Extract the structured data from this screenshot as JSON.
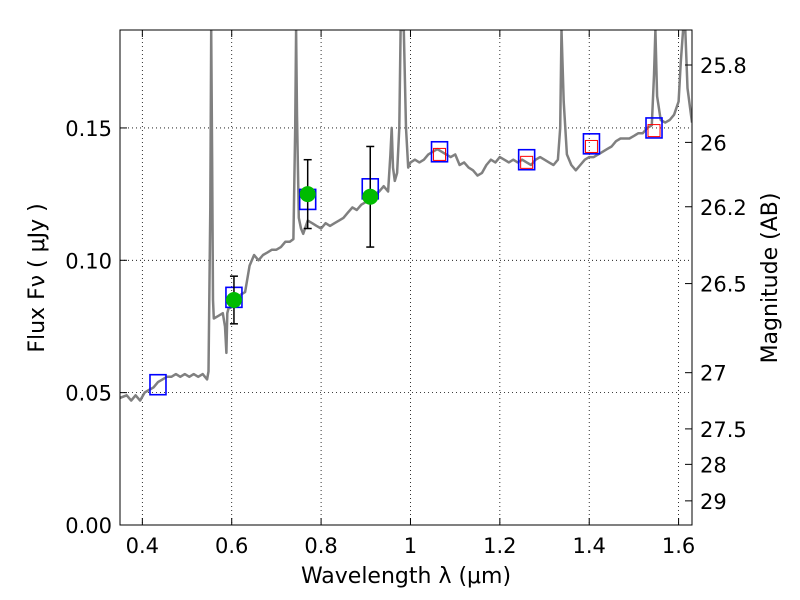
{
  "chart_data": {
    "type": "line",
    "xlabel": "Wavelength  λ (μm)",
    "ylabel": "Flux  Fν  ( μJy )",
    "y2label": "Magnitude (AB)",
    "xlim": [
      0.35,
      1.63
    ],
    "ylim": [
      0.0,
      0.187
    ],
    "grid": true,
    "x_ticks": [
      0.4,
      0.6,
      0.8,
      1.0,
      1.2,
      1.4,
      1.6
    ],
    "x_tick_labels": [
      "0.4",
      "0.6",
      "0.8",
      "1",
      "1.2",
      "1.4",
      "1.6"
    ],
    "y_ticks": [
      0.0,
      0.05,
      0.1,
      0.15
    ],
    "y_tick_labels": [
      "0.00",
      "0.05",
      "0.10",
      "0.15"
    ],
    "mag_ticks": [
      25.8,
      26,
      26.2,
      26.5,
      27,
      27.5,
      28,
      29
    ],
    "mag_tick_labels": [
      "25.8",
      "26",
      "26.2",
      "26.5",
      "27",
      "27.5",
      "28",
      "29"
    ],
    "colors": {
      "template": "#808080",
      "observed": "#00bb00",
      "errorbar": "#000000",
      "model_box": "#0000ff",
      "ir_box": "#ff0000"
    },
    "series": [
      {
        "kind": "template-spectrum",
        "points": [
          [
            0.35,
            0.048
          ],
          [
            0.365,
            0.049
          ],
          [
            0.375,
            0.047
          ],
          [
            0.385,
            0.049
          ],
          [
            0.395,
            0.047
          ],
          [
            0.405,
            0.05
          ],
          [
            0.415,
            0.051
          ],
          [
            0.425,
            0.052
          ],
          [
            0.435,
            0.054
          ],
          [
            0.445,
            0.055
          ],
          [
            0.455,
            0.056
          ],
          [
            0.465,
            0.056
          ],
          [
            0.475,
            0.057
          ],
          [
            0.485,
            0.056
          ],
          [
            0.495,
            0.057
          ],
          [
            0.505,
            0.056
          ],
          [
            0.515,
            0.057
          ],
          [
            0.525,
            0.056
          ],
          [
            0.535,
            0.057
          ],
          [
            0.545,
            0.055
          ],
          [
            0.548,
            0.058
          ],
          [
            0.552,
            0.12
          ],
          [
            0.554,
            0.187
          ],
          [
            0.556,
            0.14
          ],
          [
            0.558,
            0.085
          ],
          [
            0.56,
            0.078
          ],
          [
            0.57,
            0.079
          ],
          [
            0.58,
            0.08
          ],
          [
            0.585,
            0.075
          ],
          [
            0.588,
            0.065
          ],
          [
            0.59,
            0.08
          ],
          [
            0.593,
            0.082
          ],
          [
            0.597,
            0.082
          ],
          [
            0.6,
            0.083
          ],
          [
            0.61,
            0.084
          ],
          [
            0.62,
            0.087
          ],
          [
            0.63,
            0.088
          ],
          [
            0.64,
            0.098
          ],
          [
            0.65,
            0.102
          ],
          [
            0.66,
            0.1
          ],
          [
            0.67,
            0.102
          ],
          [
            0.68,
            0.103
          ],
          [
            0.69,
            0.104
          ],
          [
            0.7,
            0.104
          ],
          [
            0.71,
            0.105
          ],
          [
            0.72,
            0.107
          ],
          [
            0.73,
            0.107
          ],
          [
            0.738,
            0.108
          ],
          [
            0.742,
            0.15
          ],
          [
            0.744,
            0.187
          ],
          [
            0.746,
            0.155
          ],
          [
            0.75,
            0.116
          ],
          [
            0.755,
            0.112
          ],
          [
            0.76,
            0.11
          ],
          [
            0.77,
            0.115
          ],
          [
            0.78,
            0.114
          ],
          [
            0.79,
            0.113
          ],
          [
            0.8,
            0.112
          ],
          [
            0.81,
            0.114
          ],
          [
            0.82,
            0.113
          ],
          [
            0.83,
            0.114
          ],
          [
            0.84,
            0.115
          ],
          [
            0.85,
            0.116
          ],
          [
            0.86,
            0.118
          ],
          [
            0.87,
            0.12
          ],
          [
            0.88,
            0.119
          ],
          [
            0.89,
            0.121
          ],
          [
            0.9,
            0.122
          ],
          [
            0.91,
            0.124
          ],
          [
            0.92,
            0.125
          ],
          [
            0.93,
            0.126
          ],
          [
            0.94,
            0.128
          ],
          [
            0.95,
            0.126
          ],
          [
            0.955,
            0.14
          ],
          [
            0.958,
            0.15
          ],
          [
            0.961,
            0.135
          ],
          [
            0.965,
            0.13
          ],
          [
            0.97,
            0.133
          ],
          [
            0.975,
            0.15
          ],
          [
            0.978,
            0.187
          ],
          [
            0.985,
            0.187
          ],
          [
            0.99,
            0.15
          ],
          [
            0.995,
            0.135
          ],
          [
            1.0,
            0.137
          ],
          [
            1.01,
            0.138
          ],
          [
            1.02,
            0.137
          ],
          [
            1.03,
            0.138
          ],
          [
            1.04,
            0.14
          ],
          [
            1.05,
            0.141
          ],
          [
            1.06,
            0.142
          ],
          [
            1.07,
            0.141
          ],
          [
            1.08,
            0.14
          ],
          [
            1.09,
            0.139
          ],
          [
            1.1,
            0.14
          ],
          [
            1.11,
            0.136
          ],
          [
            1.12,
            0.137
          ],
          [
            1.13,
            0.135
          ],
          [
            1.14,
            0.134
          ],
          [
            1.15,
            0.132
          ],
          [
            1.16,
            0.133
          ],
          [
            1.17,
            0.136
          ],
          [
            1.18,
            0.138
          ],
          [
            1.19,
            0.137
          ],
          [
            1.2,
            0.139
          ],
          [
            1.21,
            0.138
          ],
          [
            1.22,
            0.137
          ],
          [
            1.23,
            0.138
          ],
          [
            1.24,
            0.137
          ],
          [
            1.25,
            0.138
          ],
          [
            1.26,
            0.137
          ],
          [
            1.27,
            0.136
          ],
          [
            1.28,
            0.138
          ],
          [
            1.29,
            0.139
          ],
          [
            1.3,
            0.138
          ],
          [
            1.31,
            0.137
          ],
          [
            1.32,
            0.136
          ],
          [
            1.33,
            0.138
          ],
          [
            1.335,
            0.15
          ],
          [
            1.338,
            0.187
          ],
          [
            1.343,
            0.16
          ],
          [
            1.35,
            0.14
          ],
          [
            1.36,
            0.136
          ],
          [
            1.37,
            0.134
          ],
          [
            1.38,
            0.136
          ],
          [
            1.39,
            0.138
          ],
          [
            1.4,
            0.139
          ],
          [
            1.41,
            0.139
          ],
          [
            1.42,
            0.14
          ],
          [
            1.43,
            0.141
          ],
          [
            1.44,
            0.142
          ],
          [
            1.45,
            0.143
          ],
          [
            1.46,
            0.145
          ],
          [
            1.47,
            0.146
          ],
          [
            1.48,
            0.146
          ],
          [
            1.49,
            0.146
          ],
          [
            1.5,
            0.147
          ],
          [
            1.51,
            0.148
          ],
          [
            1.52,
            0.148
          ],
          [
            1.53,
            0.15
          ],
          [
            1.54,
            0.151
          ],
          [
            1.545,
            0.17
          ],
          [
            1.548,
            0.187
          ],
          [
            1.552,
            0.162
          ],
          [
            1.56,
            0.153
          ],
          [
            1.57,
            0.152
          ],
          [
            1.58,
            0.153
          ],
          [
            1.59,
            0.155
          ],
          [
            1.6,
            0.16
          ],
          [
            1.605,
            0.175
          ],
          [
            1.61,
            0.187
          ],
          [
            1.615,
            0.187
          ],
          [
            1.62,
            0.165
          ],
          [
            1.63,
            0.152
          ]
        ]
      },
      {
        "kind": "model-photometry-boxes",
        "points": [
          [
            0.435,
            0.053
          ],
          [
            0.605,
            0.086
          ],
          [
            0.77,
            0.123
          ],
          [
            0.91,
            0.127
          ],
          [
            1.065,
            0.141
          ],
          [
            1.26,
            0.138
          ],
          [
            1.405,
            0.144
          ],
          [
            1.545,
            0.15
          ]
        ]
      },
      {
        "kind": "observed-photometry",
        "points": [
          {
            "x": 0.605,
            "y": 0.085,
            "err": 0.009
          },
          {
            "x": 0.77,
            "y": 0.125,
            "err": 0.013
          },
          {
            "x": 0.91,
            "y": 0.124,
            "err": 0.019
          }
        ]
      },
      {
        "kind": "ir-limit-boxes",
        "points": [
          [
            1.065,
            0.14
          ],
          [
            1.26,
            0.137
          ],
          [
            1.405,
            0.143
          ],
          [
            1.545,
            0.149
          ]
        ]
      }
    ]
  }
}
